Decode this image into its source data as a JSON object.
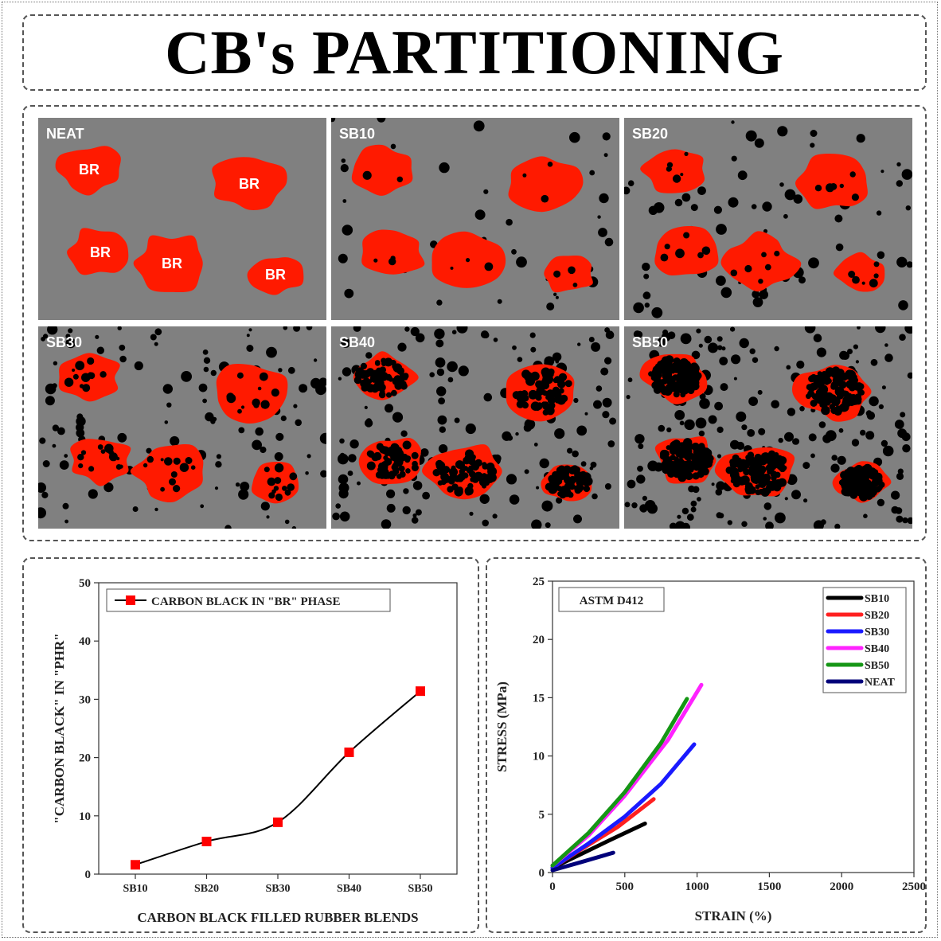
{
  "title": "CB's PARTITIONING",
  "panels": [
    {
      "label": "NEAT"
    },
    {
      "label": "SB10"
    },
    {
      "label": "SB20"
    },
    {
      "label": "SB30"
    },
    {
      "label": "SB40"
    },
    {
      "label": "SB50"
    }
  ],
  "phase_label": "BR",
  "colors": {
    "matrix": "#808080",
    "br_phase": "#ff1a00",
    "carbon_black": "#000000"
  },
  "chart_data": [
    {
      "type": "line",
      "categories": [
        "SB10",
        "SB20",
        "SB30",
        "SB40",
        "SB50"
      ],
      "series": [
        {
          "name": "CARBON BLACK IN \"BR\" PHASE",
          "values": [
            1.6,
            5.6,
            8.9,
            20.9,
            31.4
          ],
          "color": "#ff0000",
          "line_color": "#000000",
          "marker": "square"
        }
      ],
      "xlabel": "CARBON BLACK FILLED RUBBER BLENDS",
      "ylabel": "\"CARBON BLACK\" IN \"PHR\"",
      "ylim": [
        0,
        50
      ],
      "yticks": [
        0,
        10,
        20,
        30,
        40,
        50
      ],
      "legend": "top-left"
    },
    {
      "type": "line",
      "annotation": "ASTM D412",
      "xlabel": "STRAIN (%)",
      "ylabel": "STRESS (MPa)",
      "xlim": [
        0,
        2500
      ],
      "ylim": [
        0,
        25
      ],
      "xticks": [
        0,
        500,
        1000,
        1500,
        2000,
        2500
      ],
      "yticks": [
        0,
        5,
        10,
        15,
        20,
        25
      ],
      "legend": "top-right",
      "series": [
        {
          "name": "SB10",
          "color": "#000000",
          "x": [
            0,
            200,
            400,
            640
          ],
          "y": [
            0.4,
            1.6,
            2.8,
            4.2
          ]
        },
        {
          "name": "SB20",
          "color": "#ff2020",
          "x": [
            0,
            200,
            450,
            700
          ],
          "y": [
            0.4,
            2.0,
            3.9,
            6.3
          ]
        },
        {
          "name": "SB30",
          "color": "#1a1aff",
          "x": [
            0,
            250,
            500,
            750,
            980
          ],
          "y": [
            0.4,
            2.5,
            4.8,
            7.6,
            11.0
          ]
        },
        {
          "name": "SB40",
          "color": "#ff22ff",
          "x": [
            0,
            250,
            500,
            800,
            1030
          ],
          "y": [
            0.6,
            3.2,
            6.6,
            11.4,
            16.1
          ]
        },
        {
          "name": "SB50",
          "color": "#159615",
          "x": [
            0,
            250,
            500,
            750,
            930
          ],
          "y": [
            0.6,
            3.4,
            6.9,
            11.1,
            14.9
          ]
        },
        {
          "name": "NEAT",
          "color": "#00007a",
          "x": [
            0,
            200,
            420
          ],
          "y": [
            0.2,
            0.9,
            1.7
          ]
        }
      ]
    }
  ]
}
